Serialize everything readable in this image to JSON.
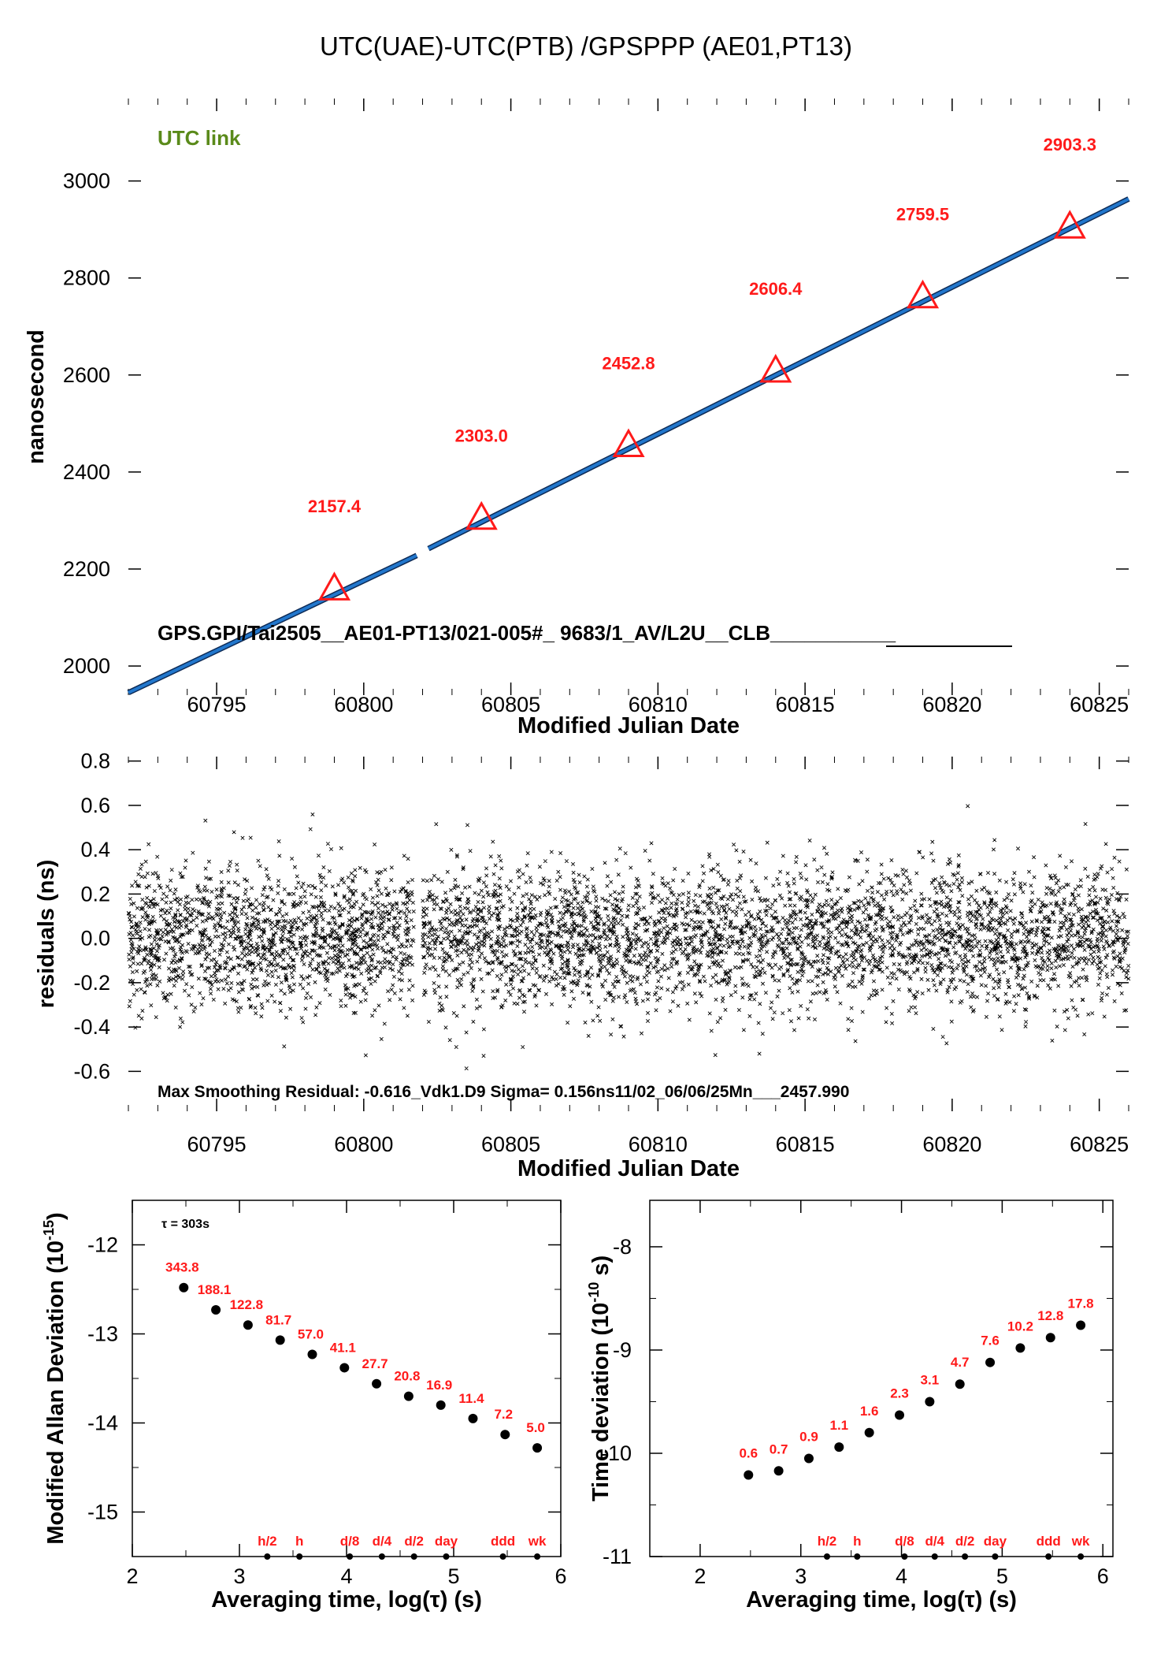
{
  "title": "UTC(UAE)-UTC(PTB)  /GPSPPP   (AE01,PT13)",
  "colors": {
    "line": "#2277cc",
    "marker": "#ff1a1a",
    "label_red": "#ff1a1a",
    "label_green": "#5a8a1a",
    "points": "#000000"
  },
  "chart_data": [
    {
      "type": "line",
      "ylabel": "nanosecond",
      "xlabel": "Modified Julian Date",
      "xlim": [
        60792,
        60826
      ],
      "ylim": [
        1940,
        3170
      ],
      "xticks": [
        "60795",
        "60800",
        "60805",
        "60810",
        "60815",
        "60820",
        "60825"
      ],
      "yticks": [
        "2000",
        "2200",
        "2400",
        "2600",
        "2800",
        "3000"
      ],
      "corner_label": "UTC link",
      "info_text": "GPS.GPI/Tai2505__AE01-PT13/021-005#_  9683/1_AV/L2U__CLB___________",
      "series": [
        {
          "x": [
            60792,
            60801.8,
            60802.2,
            60826
          ],
          "y": [
            1945,
            2228,
            2242,
            2963
          ]
        }
      ],
      "markers": {
        "x": [
          60799,
          60804,
          60809,
          60814,
          60819,
          60824
        ],
        "y": [
          2157.4,
          2303.0,
          2452.8,
          2606.4,
          2759.5,
          2903.3
        ],
        "labels": [
          "2157.4",
          "2303.0",
          "2452.8",
          "2606.4",
          "2759.5",
          "2903.3"
        ]
      }
    },
    {
      "type": "scatter",
      "ylabel": "residuals (ns)",
      "xlabel": "Modified Julian Date",
      "xlim": [
        60792,
        60826
      ],
      "ylim": [
        -0.78,
        0.82
      ],
      "xticks": [
        "60795",
        "60800",
        "60805",
        "60810",
        "60815",
        "60820",
        "60825"
      ],
      "yticks": [
        "0.8",
        "0.6",
        "0.4",
        "0.2",
        "0.0",
        "-0.2",
        "-0.4",
        "-0.6"
      ],
      "gap": [
        60801.7,
        60802.0
      ],
      "sigma": 0.156,
      "info_text": "Max Smoothing Residual: -0.616_Vdk1.D9  Sigma= 0.156ns11/02_06/06/25Mn___2457.990"
    },
    {
      "type": "scatter",
      "ylabel": "Modified Allan Deviation (10",
      "ylabel_exp": "-15",
      "ylabel_end": ")",
      "xlabel": "Averaging time, log(τ) (s)",
      "xlim": [
        2,
        6
      ],
      "ylim": [
        -15.5,
        -11.5
      ],
      "xticks": [
        "2",
        "3",
        "4",
        "5",
        "6"
      ],
      "yticks": [
        "-12",
        "-13",
        "-14",
        "-15"
      ],
      "tau_note": "τ = 303s",
      "x": [
        2.48,
        2.78,
        3.08,
        3.38,
        3.68,
        3.98,
        4.28,
        4.58,
        4.88,
        5.18,
        5.48,
        5.78
      ],
      "y": [
        -12.48,
        -12.73,
        -12.9,
        -13.07,
        -13.23,
        -13.38,
        -13.56,
        -13.7,
        -13.8,
        -13.95,
        -14.13,
        -14.28
      ],
      "labels": [
        "343.8",
        "188.1",
        "122.8",
        "81.7",
        "57.0",
        "41.1",
        "27.7",
        "20.8",
        "16.9",
        "11.4",
        "7.2",
        "5.0"
      ],
      "period_x": [
        3.26,
        3.56,
        4.03,
        4.33,
        4.63,
        4.93,
        5.46,
        5.78
      ],
      "period_labels": [
        "h/2",
        "h",
        "d/8",
        "d/4",
        "d/2",
        "day",
        "ddd",
        "wk"
      ]
    },
    {
      "type": "scatter",
      "ylabel": "Time deviation (10",
      "ylabel_exp": "-10",
      "ylabel_end": " s)",
      "xlabel": "Averaging time, log(τ) (s)",
      "xlim": [
        1.5,
        6.1
      ],
      "ylim": [
        -11,
        -7.55
      ],
      "xticks": [
        "2",
        "3",
        "4",
        "5",
        "6"
      ],
      "yticks": [
        "-8",
        "-9",
        "-10",
        "-11"
      ],
      "x": [
        2.48,
        2.78,
        3.08,
        3.38,
        3.68,
        3.98,
        4.28,
        4.58,
        4.88,
        5.18,
        5.48,
        5.78
      ],
      "y": [
        -10.21,
        -10.17,
        -10.05,
        -9.94,
        -9.8,
        -9.63,
        -9.5,
        -9.33,
        -9.12,
        -8.98,
        -8.88,
        -8.76
      ],
      "labels": [
        "0.6",
        "0.7",
        "0.9",
        "1.1",
        "1.6",
        "2.3",
        "3.1",
        "4.7",
        "7.6",
        "10.2",
        "12.8",
        "17.8"
      ],
      "period_x": [
        3.26,
        3.56,
        4.03,
        4.33,
        4.63,
        4.93,
        5.46,
        5.78
      ],
      "period_labels": [
        "h/2",
        "h",
        "d/8",
        "d/4",
        "d/2",
        "day",
        "ddd",
        "wk"
      ]
    }
  ]
}
